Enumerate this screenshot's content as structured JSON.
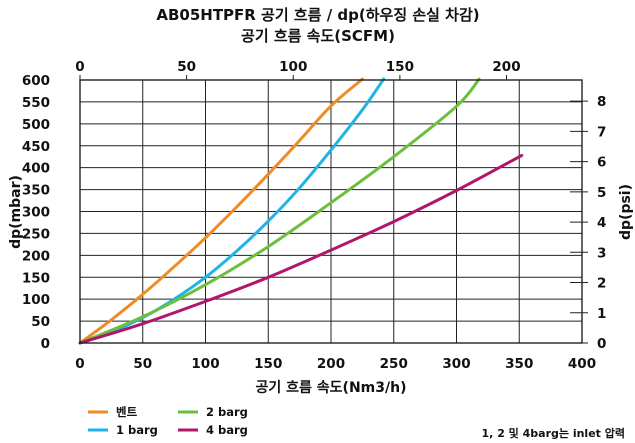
{
  "chart_data": {
    "type": "line",
    "title": "AB05HTPFR 공기 흐름 / dp(하우징 손실 차감)",
    "subtitle": "공기 흐름 속도(SCFM)",
    "xlabel": "공기 흐름 속도(Nm3/h)",
    "ylabel": "dp(mbar)",
    "y2label": "dp(psi)",
    "xlim": [
      0,
      400
    ],
    "ylim": [
      0,
      600
    ],
    "x_ticks": [
      "0",
      "50",
      "100",
      "150",
      "200",
      "250",
      "300",
      "350",
      "400"
    ],
    "y_ticks": [
      "0",
      "50",
      "100",
      "150",
      "200",
      "250",
      "300",
      "350",
      "400",
      "450",
      "500",
      "550",
      "600"
    ],
    "x2lim": [
      0,
      235.4
    ],
    "x2_ticks": [
      "0",
      "50",
      "100",
      "150",
      "200"
    ],
    "y2lim": [
      0,
      8.7
    ],
    "y2_ticks": [
      "0",
      "1",
      "2",
      "3",
      "4",
      "5",
      "6",
      "7",
      "8"
    ],
    "grid": true,
    "legend_position": "bottom-left",
    "series": [
      {
        "name": "벤트",
        "color": "#f08a24",
        "x": [
          0,
          25,
          50,
          75,
          100,
          125,
          150,
          175,
          200,
          225
        ],
        "y": [
          0,
          53,
          111,
          174,
          240,
          311,
          385,
          462,
          541,
          602
        ]
      },
      {
        "name": "1 barg",
        "color": "#1fb3e6",
        "x": [
          0,
          25,
          50,
          75,
          100,
          125,
          150,
          175,
          200,
          225,
          242
        ],
        "y": [
          0,
          25,
          58,
          100,
          150,
          210,
          278,
          354,
          440,
          532,
          602
        ]
      },
      {
        "name": "2 barg",
        "color": "#6cbf3c",
        "x": [
          0,
          50,
          100,
          150,
          200,
          250,
          300,
          318
        ],
        "y": [
          0,
          60,
          133,
          220,
          320,
          425,
          540,
          602
        ]
      },
      {
        "name": "4 barg",
        "color": "#b0176b",
        "x": [
          0,
          50,
          100,
          150,
          200,
          250,
          300,
          352
        ],
        "y": [
          0,
          44,
          95,
          150,
          212,
          277,
          348,
          428
        ]
      }
    ],
    "note": "1, 2 및 4barg는 inlet 압력"
  }
}
